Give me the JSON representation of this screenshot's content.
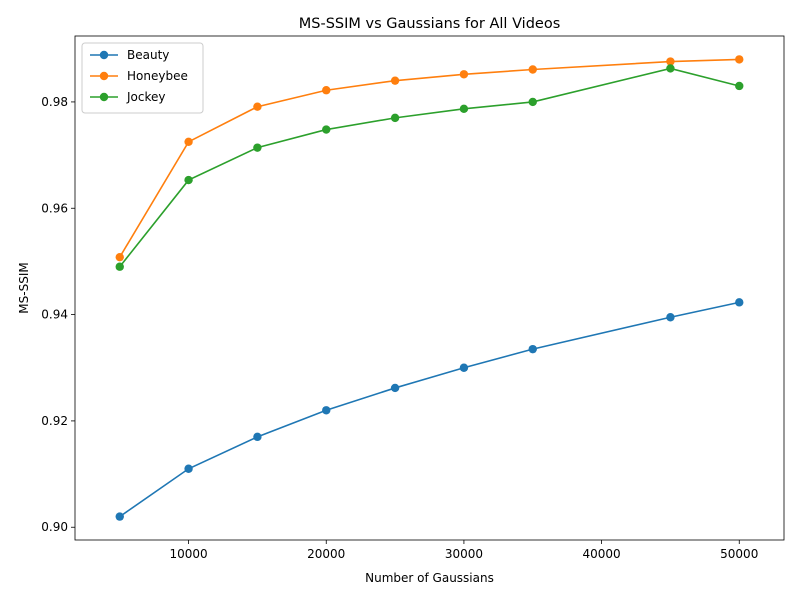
{
  "chart_data": {
    "type": "line",
    "title": "MS-SSIM vs Gaussians for All Videos",
    "xlabel": "Number of Gaussians",
    "ylabel": "MS-SSIM",
    "x": [
      5000,
      10000,
      15000,
      20000,
      25000,
      30000,
      35000,
      45000,
      50000
    ],
    "xlim": [
      1750,
      53250
    ],
    "ylim": [
      0.8976,
      0.9924
    ],
    "xticks": [
      10000,
      20000,
      30000,
      40000,
      50000
    ],
    "xtick_labels": [
      "10000",
      "20000",
      "30000",
      "40000",
      "50000"
    ],
    "yticks": [
      0.9,
      0.92,
      0.94,
      0.96,
      0.98
    ],
    "ytick_labels": [
      "0.90",
      "0.92",
      "0.94",
      "0.96",
      "0.98"
    ],
    "grid": false,
    "legend_position": "top-left",
    "series": [
      {
        "name": "Beauty",
        "color": "#1f77b4",
        "marker": "circle",
        "values": [
          0.902,
          0.911,
          0.917,
          0.922,
          0.9262,
          0.93,
          0.9335,
          0.9395,
          0.9423
        ]
      },
      {
        "name": "Honeybee",
        "color": "#ff7f0e",
        "marker": "circle",
        "values": [
          0.9508,
          0.9725,
          0.9791,
          0.9822,
          0.984,
          0.9852,
          0.9861,
          0.9876,
          0.988
        ]
      },
      {
        "name": "Jockey",
        "color": "#2ca02c",
        "marker": "circle",
        "values": [
          0.949,
          0.9653,
          0.9714,
          0.9748,
          0.977,
          0.9787,
          0.98,
          0.9863,
          0.983
        ]
      }
    ]
  }
}
